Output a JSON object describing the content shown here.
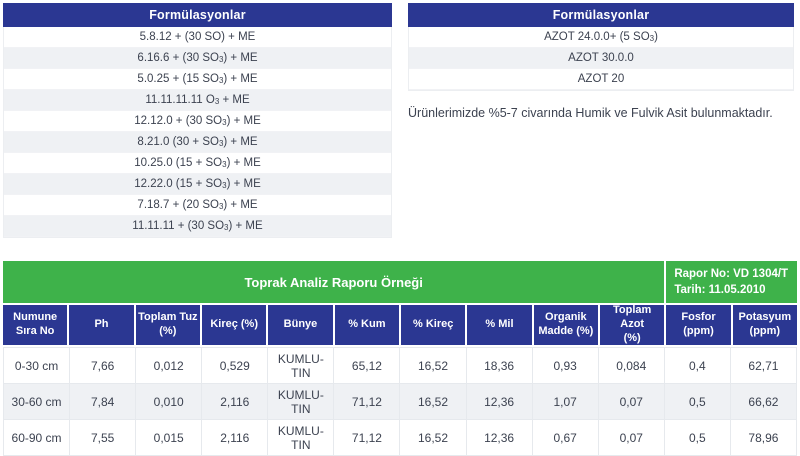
{
  "colors": {
    "navy_header": "#2b3792",
    "green_header": "#3eb24a",
    "alt_row": "#eff1f4",
    "text": "#3c4250"
  },
  "left_table": {
    "title": "Formülasyonlar",
    "rows": [
      {
        "before": "5.8.12 + (30 SO) + ME",
        "sub": "",
        "after": ""
      },
      {
        "before": "6.16.6 + (30 SO",
        "sub": "3",
        "after": ") + ME"
      },
      {
        "before": "5.0.25 + (15 SO",
        "sub": "3",
        "after": ") + ME"
      },
      {
        "before": "11.11.11.11 O",
        "sub": "3",
        "after": " + ME"
      },
      {
        "before": "12.12.0 + (30 SO",
        "sub": "3",
        "after": ") + ME"
      },
      {
        "before": "8.21.0 (30 + SO",
        "sub": "3",
        "after": ") + ME"
      },
      {
        "before": "10.25.0 (15 + SO",
        "sub": "3",
        "after": ") + ME"
      },
      {
        "before": "12.22.0 (15 + SO",
        "sub": "3",
        "after": ") + ME"
      },
      {
        "before": "7.18.7 + (20 SO",
        "sub": "3",
        "after": ") + ME"
      },
      {
        "before": "11.11.11 + (30 SO",
        "sub": "3",
        "after": ") + ME"
      }
    ]
  },
  "right_table": {
    "title": "Formülasyonlar",
    "rows": [
      {
        "before": "AZOT 24.0.0+ (5 SO",
        "sub": "3",
        "after": ")"
      },
      {
        "before": "AZOT 30.0.0",
        "sub": "",
        "after": ""
      },
      {
        "before": "AZOT 20",
        "sub": "",
        "after": ""
      }
    ],
    "note": "Ürünlerimizde %5-7 civarında Humik ve Fulvik Asit bulunmaktadır."
  },
  "report_table": {
    "title": "Toprak Analiz Raporu Örneği",
    "report_no": "Rapor No: VD 1304/T",
    "date": "Tarih: 11.05.2010",
    "columns": [
      "Numune\nSıra No",
      "Ph",
      "Toplam Tuz\n(%)",
      "Kireç (%)",
      "Bünye",
      "% Kum",
      "% Kireç",
      "% Mil",
      "Organik\nMadde (%)",
      "Toplam Azot\n(%)",
      "Fosfor\n(ppm)",
      "Potasyum\n(ppm)"
    ],
    "rows": [
      [
        "0-30 cm",
        "7,66",
        "0,012",
        "0,529",
        "KUMLU-TIN",
        "65,12",
        "16,52",
        "18,36",
        "0,93",
        "0,084",
        "0,4",
        "62,71"
      ],
      [
        "30-60 cm",
        "7,84",
        "0,010",
        "2,116",
        "KUMLU-TIN",
        "71,12",
        "16,52",
        "12,36",
        "1,07",
        "0,07",
        "0,5",
        "66,62"
      ],
      [
        "60-90 cm",
        "7,55",
        "0,015",
        "2,116",
        "KUMLU-TIN",
        "71,12",
        "16,52",
        "12,36",
        "0,67",
        "0,07",
        "0,5",
        "78,96"
      ]
    ]
  }
}
